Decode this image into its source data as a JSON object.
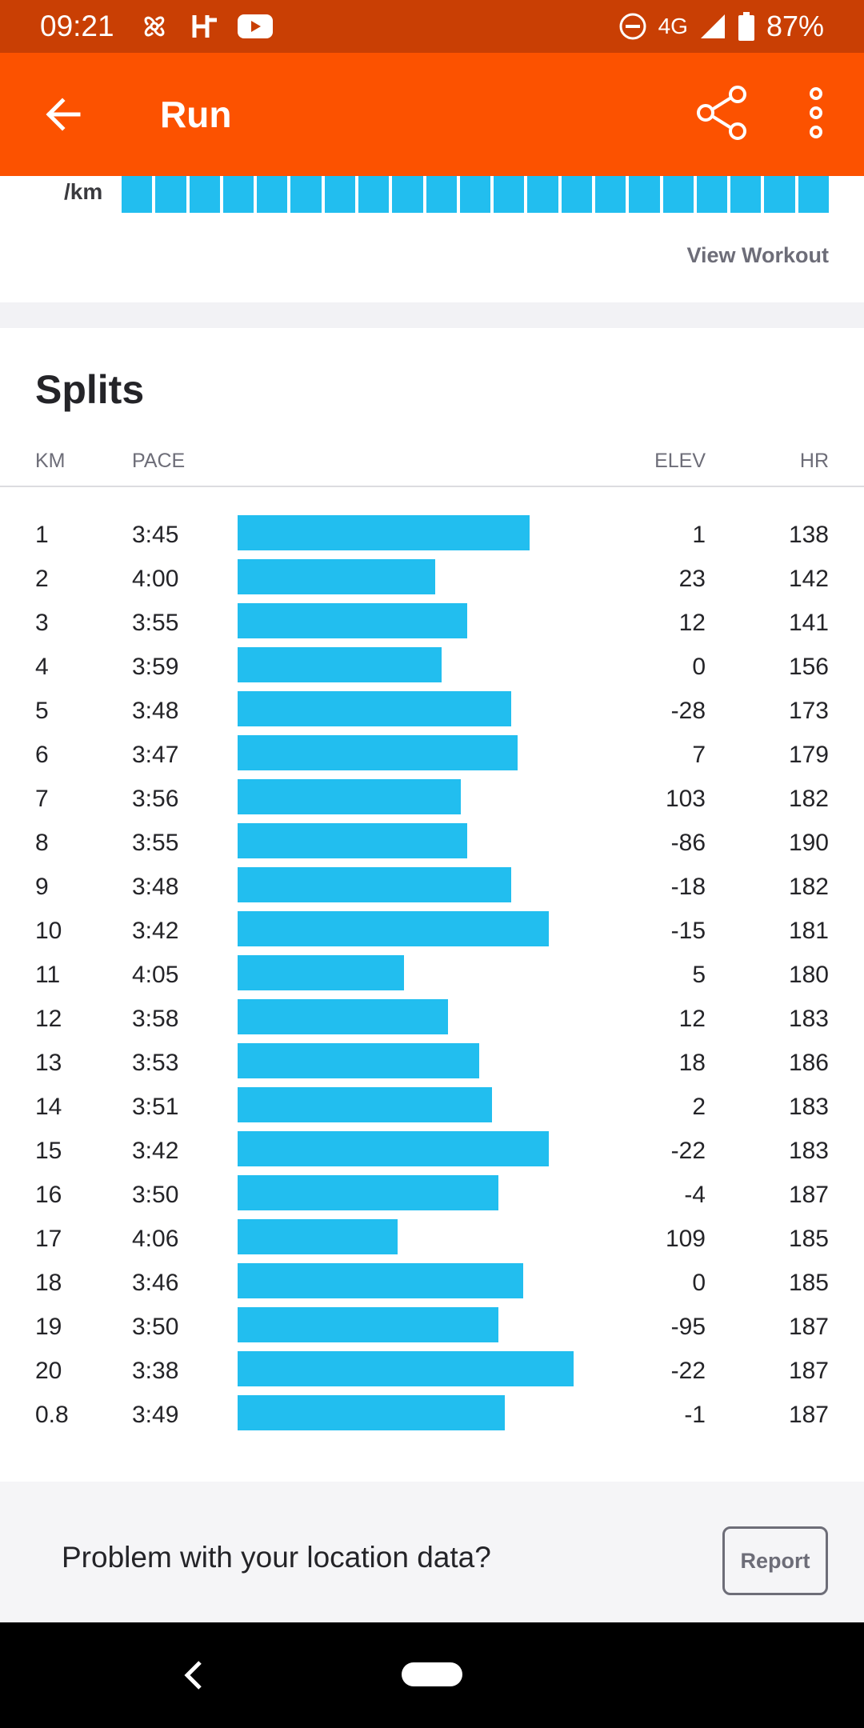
{
  "status_bar": {
    "time": "09:21",
    "network": "4G",
    "battery": "87%",
    "icons": [
      "fan-icon",
      "h-icon",
      "youtube-icon",
      "dnd-icon",
      "signal-icon",
      "battery-icon"
    ]
  },
  "app_bar": {
    "title": "Run",
    "icons": [
      "back-arrow-icon",
      "share-icon",
      "more-vert-icon"
    ],
    "accent": "#fc5200"
  },
  "pace_strip": {
    "unit": "/km",
    "view_workout": "View Workout",
    "bar_color": "#22beef"
  },
  "splits": {
    "title": "Splits",
    "columns": {
      "km": "KM",
      "pace": "PACE",
      "elev": "ELEV",
      "hr": "HR"
    },
    "rows": [
      {
        "km": "1",
        "pace": "3:45",
        "pace_sec": 225,
        "elev": "1",
        "hr": "138"
      },
      {
        "km": "2",
        "pace": "4:00",
        "pace_sec": 240,
        "elev": "23",
        "hr": "142"
      },
      {
        "km": "3",
        "pace": "3:55",
        "pace_sec": 235,
        "elev": "12",
        "hr": "141"
      },
      {
        "km": "4",
        "pace": "3:59",
        "pace_sec": 239,
        "elev": "0",
        "hr": "156"
      },
      {
        "km": "5",
        "pace": "3:48",
        "pace_sec": 228,
        "elev": "-28",
        "hr": "173"
      },
      {
        "km": "6",
        "pace": "3:47",
        "pace_sec": 227,
        "elev": "7",
        "hr": "179"
      },
      {
        "km": "7",
        "pace": "3:56",
        "pace_sec": 236,
        "elev": "103",
        "hr": "182"
      },
      {
        "km": "8",
        "pace": "3:55",
        "pace_sec": 235,
        "elev": "-86",
        "hr": "190"
      },
      {
        "km": "9",
        "pace": "3:48",
        "pace_sec": 228,
        "elev": "-18",
        "hr": "182"
      },
      {
        "km": "10",
        "pace": "3:42",
        "pace_sec": 222,
        "elev": "-15",
        "hr": "181"
      },
      {
        "km": "11",
        "pace": "4:05",
        "pace_sec": 245,
        "elev": "5",
        "hr": "180"
      },
      {
        "km": "12",
        "pace": "3:58",
        "pace_sec": 238,
        "elev": "12",
        "hr": "183"
      },
      {
        "km": "13",
        "pace": "3:53",
        "pace_sec": 233,
        "elev": "18",
        "hr": "186"
      },
      {
        "km": "14",
        "pace": "3:51",
        "pace_sec": 231,
        "elev": "2",
        "hr": "183"
      },
      {
        "km": "15",
        "pace": "3:42",
        "pace_sec": 222,
        "elev": "-22",
        "hr": "183"
      },
      {
        "km": "16",
        "pace": "3:50",
        "pace_sec": 230,
        "elev": "-4",
        "hr": "187"
      },
      {
        "km": "17",
        "pace": "4:06",
        "pace_sec": 246,
        "elev": "109",
        "hr": "185"
      },
      {
        "km": "18",
        "pace": "3:46",
        "pace_sec": 226,
        "elev": "0",
        "hr": "185"
      },
      {
        "km": "19",
        "pace": "3:50",
        "pace_sec": 230,
        "elev": "-95",
        "hr": "187"
      },
      {
        "km": "20",
        "pace": "3:38",
        "pace_sec": 218,
        "elev": "-22",
        "hr": "187"
      },
      {
        "km": "0.8",
        "pace": "3:49",
        "pace_sec": 229,
        "elev": "-1",
        "hr": "187"
      }
    ]
  },
  "footer": {
    "question": "Problem with your location data?",
    "report_label": "Report"
  },
  "nav_bar": {
    "icons": [
      "nav-back-icon",
      "home-pill-icon"
    ]
  }
}
